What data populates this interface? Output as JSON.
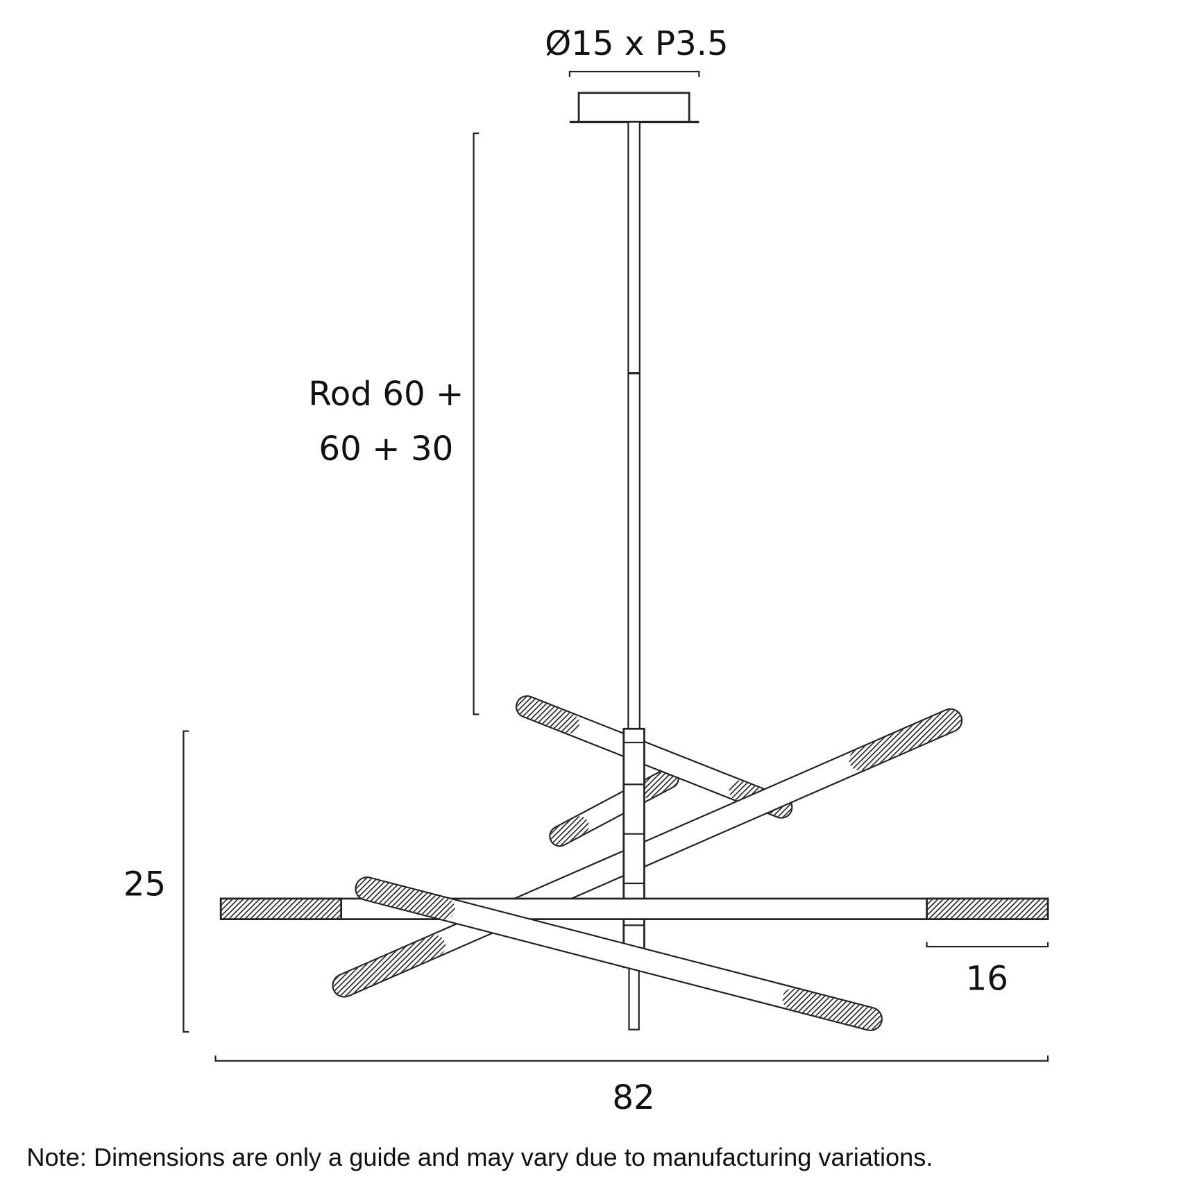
{
  "header": {
    "fitting": "Ø15 x P3.5"
  },
  "dimensions": {
    "rod": [
      "Rod 60 +",
      "60 + 30"
    ],
    "height": "25",
    "light_length": "16",
    "width": "82"
  },
  "footer": {
    "note": "Note: Dimensions are only a guide and may vary due to manufacturing variations."
  }
}
